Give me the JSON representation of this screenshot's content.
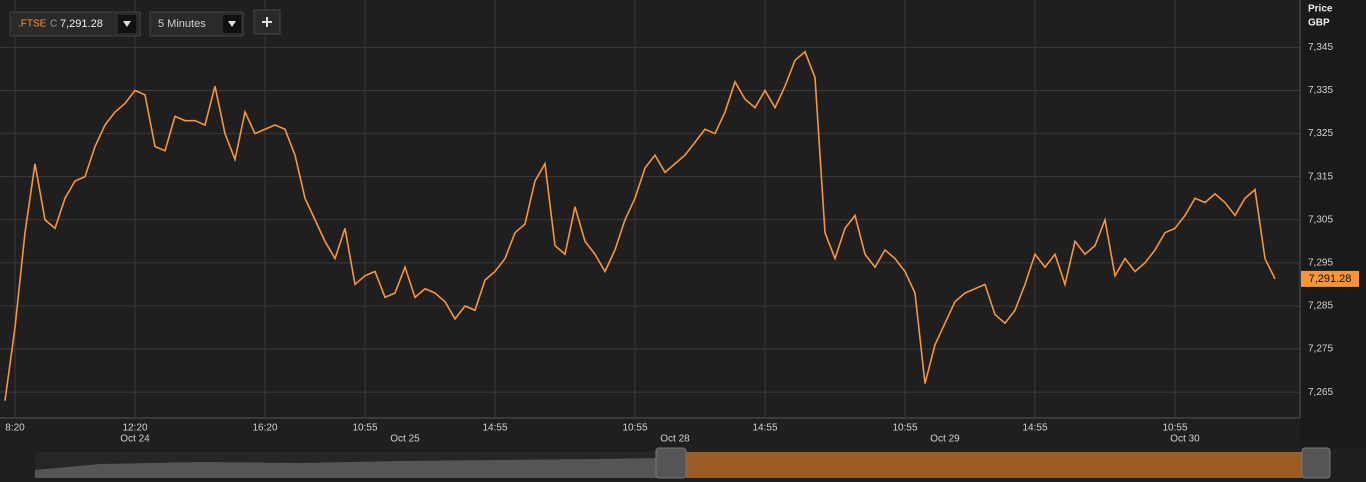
{
  "ui": {
    "symbol": ".FTSE",
    "quote_prefix": "C",
    "quote": "7,291.28",
    "interval": "5 Minutes"
  },
  "chart_data": {
    "type": "line",
    "y_axis_title": "Price",
    "y_axis_unit": "GBP",
    "color": "#f7953a",
    "grid": true,
    "ylim": [
      7259,
      7356
    ],
    "yticks": [
      {
        "value": 7265,
        "label": "7,265"
      },
      {
        "value": 7275,
        "label": "7,275"
      },
      {
        "value": 7285,
        "label": "7,285"
      },
      {
        "value": 7295,
        "label": "7,295"
      },
      {
        "value": 7305,
        "label": "7,305"
      },
      {
        "value": 7315,
        "label": "7,315"
      },
      {
        "value": 7325,
        "label": "7,325"
      },
      {
        "value": 7335,
        "label": "7,335"
      },
      {
        "value": 7345,
        "label": "7,345"
      }
    ],
    "categories": [
      null,
      "8:20",
      null,
      null,
      null,
      null,
      null,
      null,
      null,
      null,
      null,
      null,
      null,
      "12:20",
      null,
      null,
      null,
      null,
      null,
      null,
      null,
      null,
      null,
      null,
      null,
      null,
      "16:20",
      null,
      null,
      null,
      null,
      null,
      null,
      null,
      null,
      null,
      "10:55",
      null,
      null,
      null,
      null,
      null,
      null,
      null,
      null,
      null,
      null,
      null,
      null,
      "14:55",
      null,
      null,
      null,
      null,
      null,
      null,
      null,
      null,
      null,
      null,
      null,
      null,
      null,
      "10:55",
      null,
      null,
      null,
      null,
      null,
      null,
      null,
      null,
      null,
      null,
      null,
      null,
      "14:55",
      null,
      null,
      null,
      null,
      null,
      null,
      null,
      null,
      null,
      null,
      null,
      null,
      null,
      "10:55",
      null,
      null,
      null,
      null,
      null,
      null,
      null,
      null,
      null,
      null,
      null,
      null,
      "14:55",
      null,
      null,
      null,
      null,
      null,
      null,
      null,
      null,
      null,
      null,
      null,
      null,
      null,
      "10:55",
      null,
      null,
      null,
      null,
      null,
      null,
      null,
      null,
      null,
      null
    ],
    "date_labels": [
      null,
      null,
      null,
      null,
      null,
      null,
      null,
      null,
      null,
      null,
      null,
      null,
      null,
      "Oct 24",
      null,
      null,
      null,
      null,
      null,
      null,
      null,
      null,
      null,
      null,
      null,
      null,
      null,
      null,
      null,
      null,
      null,
      null,
      null,
      null,
      null,
      null,
      null,
      null,
      null,
      null,
      "Oct 25",
      null,
      null,
      null,
      null,
      null,
      null,
      null,
      null,
      null,
      null,
      null,
      null,
      null,
      null,
      null,
      null,
      null,
      null,
      null,
      null,
      null,
      null,
      null,
      null,
      null,
      null,
      "Oct 28",
      null,
      null,
      null,
      null,
      null,
      null,
      null,
      null,
      null,
      null,
      null,
      null,
      null,
      null,
      null,
      null,
      null,
      null,
      null,
      null,
      null,
      null,
      null,
      null,
      null,
      null,
      "Oct 29",
      null,
      null,
      null,
      null,
      null,
      null,
      null,
      null,
      null,
      null,
      null,
      null,
      null,
      null,
      null,
      null,
      null,
      null,
      null,
      null,
      null,
      null,
      null,
      "Oct 30",
      null,
      null,
      null,
      null,
      null,
      null,
      null,
      null,
      null
    ],
    "values": [
      7263,
      7280,
      7302,
      7318,
      7305,
      7303,
      7310,
      7314,
      7315,
      7322,
      7327,
      7330,
      7332,
      7335,
      7334,
      7322,
      7321,
      7329,
      7328,
      7328,
      7327,
      7336,
      7325,
      7319,
      7330,
      7325,
      7326,
      7327,
      7326,
      7320,
      7310,
      7305,
      7300,
      7296,
      7303,
      7290,
      7292,
      7293,
      7287,
      7288,
      7294,
      7287,
      7289,
      7288,
      7286,
      7282,
      7285,
      7284,
      7291,
      7293,
      7296,
      7302,
      7304,
      7314,
      7318,
      7299,
      7297,
      7308,
      7300,
      7297,
      7293,
      7298,
      7305,
      7310,
      7317,
      7320,
      7316,
      7318,
      7320,
      7323,
      7326,
      7325,
      7330,
      7337,
      7333,
      7331,
      7335,
      7331,
      7336,
      7342,
      7344,
      7338,
      7302,
      7296,
      7303,
      7306,
      7297,
      7294,
      7298,
      7296,
      7293,
      7288,
      7267,
      7276,
      7281,
      7286,
      7288,
      7289,
      7290,
      7283,
      7281,
      7284,
      7290,
      7297,
      7294,
      7297,
      7290,
      7300,
      7297,
      7299,
      7305,
      7292,
      7296,
      7293,
      7295,
      7298,
      7302,
      7303,
      7306,
      7310,
      7309,
      7311,
      7309,
      7306,
      7310,
      7312,
      7296,
      7291.28
    ],
    "value_labels": [
      null,
      null,
      null,
      null,
      null,
      null,
      null,
      null,
      null,
      null,
      null,
      null,
      null,
      null,
      null,
      null,
      null,
      null,
      null,
      null,
      null,
      null,
      null,
      null,
      null,
      null,
      null,
      null,
      null,
      null,
      null,
      null,
      null,
      null,
      null,
      null,
      null,
      null,
      null,
      null,
      null,
      null,
      null,
      null,
      null,
      null,
      null,
      null,
      null,
      null,
      null,
      null,
      null,
      null,
      null,
      null,
      null,
      null,
      null,
      null,
      null,
      null,
      null,
      null,
      null,
      null,
      null,
      null,
      null,
      null,
      null,
      null,
      null,
      null,
      null,
      null,
      null,
      null,
      null,
      null,
      null,
      null,
      null,
      null,
      null,
      null,
      null,
      null,
      null,
      null,
      null,
      null,
      null,
      null,
      null,
      null,
      null,
      null,
      null,
      null,
      null,
      null,
      null,
      null,
      null,
      null,
      null,
      null,
      null,
      null,
      null,
      null,
      null,
      null,
      null,
      null,
      null,
      null,
      null,
      null,
      null,
      null,
      null,
      null,
      null,
      null,
      null,
      "7,291.28"
    ]
  }
}
